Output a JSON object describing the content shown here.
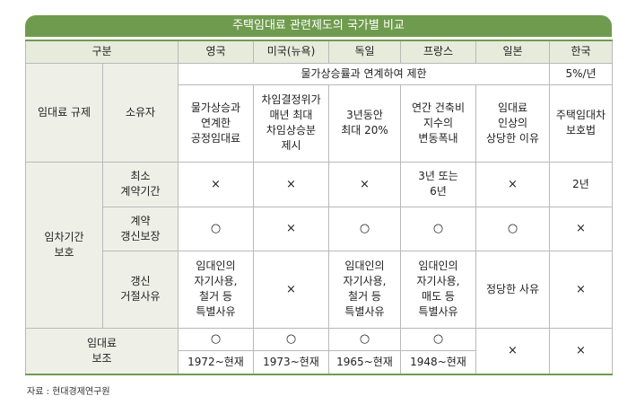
{
  "title": "주택임대료 관련제도의 국가별 비교",
  "header": {
    "category": "구분",
    "countries": [
      "영국",
      "미국(뉴욕)",
      "독일",
      "프랑스",
      "일본",
      "한국"
    ]
  },
  "rent_regulation": {
    "label": "임대료 규제",
    "sub_label": "소유자",
    "merged_note": "물가상승률과 연계하여 제한",
    "korea_note": "5%/년",
    "values": [
      "물가상승과\n연계한\n공정임대료",
      "차임결정위가\n매년 최대\n차임상승분\n제시",
      "3년동안\n최대 20%",
      "연간 건축비\n지수의\n변동폭내",
      "임대료\n인상의\n상당한 이유",
      "주택임대차\n보호법"
    ]
  },
  "tenancy_protection": {
    "label": "임차기간\n보호",
    "rows": [
      {
        "label": "최소\n계약기간",
        "values": [
          "×",
          "×",
          "×",
          "3년 또는\n6년",
          "×",
          "2년"
        ]
      },
      {
        "label": "계약\n갱신보장",
        "values": [
          "○",
          "×",
          "○",
          "○",
          "○",
          "×"
        ]
      },
      {
        "label": "갱신\n거절사유",
        "values": [
          "임대인의\n자기사용,\n철거 등\n특별사유",
          "×",
          "임대인의\n자기사용,\n철거 등\n특별사유",
          "임대인의\n자기사용,\n매도 등\n특별사유",
          "정당한 사유",
          "×"
        ]
      }
    ]
  },
  "rent_subsidy": {
    "label": "임대료\n보조",
    "marks": [
      "○",
      "○",
      "○",
      "○"
    ],
    "periods": [
      "1972~현재",
      "1973~현재",
      "1965~현재",
      "1948~현재"
    ],
    "japan": "×",
    "korea": "×"
  },
  "source": "자료 : 현대경제연구원",
  "colors": {
    "accent": "#6f9b4e",
    "header_bg": "#e6ebdc",
    "category_bg": "#eef0e8",
    "border": "#b9b9b9"
  }
}
